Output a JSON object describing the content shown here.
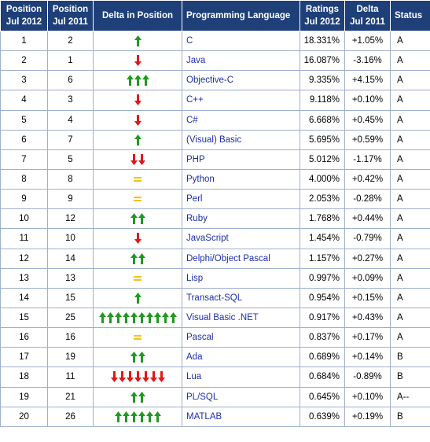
{
  "headers": {
    "pos_2012": [
      "Position",
      "Jul 2012"
    ],
    "pos_2011": [
      "Position",
      "Jul 2011"
    ],
    "delta_position": "Delta in Position",
    "language": "Programming Language",
    "ratings": [
      "Ratings",
      "Jul 2012"
    ],
    "delta_rating": [
      "Delta",
      "Jul 2011"
    ],
    "status": "Status"
  },
  "colors": {
    "header_bg": "#1e3f78",
    "up_arrow": "#1f9a1f",
    "down_arrow": "#e01818",
    "equal": "#f3c21e",
    "link": "#1c2fa8"
  },
  "rows": [
    {
      "pos2012": "1",
      "pos2011": "2",
      "trend": "up",
      "count": 1,
      "language": "C",
      "rating": "18.331%",
      "delta": "+1.05%",
      "status": "A"
    },
    {
      "pos2012": "2",
      "pos2011": "1",
      "trend": "down",
      "count": 1,
      "language": "Java",
      "rating": "16.087%",
      "delta": "-3.16%",
      "status": "A"
    },
    {
      "pos2012": "3",
      "pos2011": "6",
      "trend": "up",
      "count": 3,
      "language": "Objective-C",
      "rating": "9.335%",
      "delta": "+4.15%",
      "status": "A"
    },
    {
      "pos2012": "4",
      "pos2011": "3",
      "trend": "down",
      "count": 1,
      "language": "C++",
      "rating": "9.118%",
      "delta": "+0.10%",
      "status": "A"
    },
    {
      "pos2012": "5",
      "pos2011": "4",
      "trend": "down",
      "count": 1,
      "language": "C#",
      "rating": "6.668%",
      "delta": "+0.45%",
      "status": "A"
    },
    {
      "pos2012": "6",
      "pos2011": "7",
      "trend": "up",
      "count": 1,
      "language": "(Visual) Basic",
      "rating": "5.695%",
      "delta": "+0.59%",
      "status": "A"
    },
    {
      "pos2012": "7",
      "pos2011": "5",
      "trend": "down",
      "count": 2,
      "language": "PHP",
      "rating": "5.012%",
      "delta": "-1.17%",
      "status": "A"
    },
    {
      "pos2012": "8",
      "pos2011": "8",
      "trend": "same",
      "count": 1,
      "language": "Python",
      "rating": "4.000%",
      "delta": "+0.42%",
      "status": "A"
    },
    {
      "pos2012": "9",
      "pos2011": "9",
      "trend": "same",
      "count": 1,
      "language": "Perl",
      "rating": "2.053%",
      "delta": "-0.28%",
      "status": "A"
    },
    {
      "pos2012": "10",
      "pos2011": "12",
      "trend": "up",
      "count": 2,
      "language": "Ruby",
      "rating": "1.768%",
      "delta": "+0.44%",
      "status": "A"
    },
    {
      "pos2012": "11",
      "pos2011": "10",
      "trend": "down",
      "count": 1,
      "language": "JavaScript",
      "rating": "1.454%",
      "delta": "-0.79%",
      "status": "A"
    },
    {
      "pos2012": "12",
      "pos2011": "14",
      "trend": "up",
      "count": 2,
      "language": "Delphi/Object Pascal",
      "rating": "1.157%",
      "delta": "+0.27%",
      "status": "A"
    },
    {
      "pos2012": "13",
      "pos2011": "13",
      "trend": "same",
      "count": 1,
      "language": "Lisp",
      "rating": "0.997%",
      "delta": "+0.09%",
      "status": "A"
    },
    {
      "pos2012": "14",
      "pos2011": "15",
      "trend": "up",
      "count": 1,
      "language": "Transact-SQL",
      "rating": "0.954%",
      "delta": "+0.15%",
      "status": "A"
    },
    {
      "pos2012": "15",
      "pos2011": "25",
      "trend": "up",
      "count": 10,
      "language": "Visual Basic .NET",
      "rating": "0.917%",
      "delta": "+0.43%",
      "status": "A"
    },
    {
      "pos2012": "16",
      "pos2011": "16",
      "trend": "same",
      "count": 1,
      "language": "Pascal",
      "rating": "0.837%",
      "delta": "+0.17%",
      "status": "A"
    },
    {
      "pos2012": "17",
      "pos2011": "19",
      "trend": "up",
      "count": 2,
      "language": "Ada",
      "rating": "0.689%",
      "delta": "+0.14%",
      "status": "B"
    },
    {
      "pos2012": "18",
      "pos2011": "11",
      "trend": "down",
      "count": 7,
      "language": "Lua",
      "rating": "0.684%",
      "delta": "-0.89%",
      "status": "B"
    },
    {
      "pos2012": "19",
      "pos2011": "21",
      "trend": "up",
      "count": 2,
      "language": "PL/SQL",
      "rating": "0.645%",
      "delta": "+0.10%",
      "status": "A--"
    },
    {
      "pos2012": "20",
      "pos2011": "26",
      "trend": "up",
      "count": 6,
      "language": "MATLAB",
      "rating": "0.639%",
      "delta": "+0.19%",
      "status": "B"
    }
  ]
}
